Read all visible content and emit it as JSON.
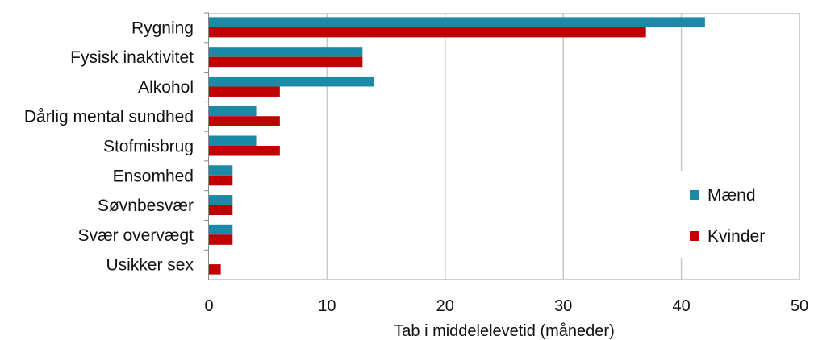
{
  "chart_data": {
    "type": "bar",
    "orientation": "horizontal",
    "categories": [
      "Rygning",
      "Fysisk inaktivitet",
      "Alkohol",
      "Dårlig mental sundhed",
      "Stofmisbrug",
      "Ensomhed",
      "Søvnbesvær",
      "Svær overvægt",
      "Usikker sex"
    ],
    "series": [
      {
        "name": "Mænd",
        "color": "#1a8aa6",
        "values": [
          42,
          13,
          14,
          4,
          4,
          2,
          2,
          2,
          0
        ]
      },
      {
        "name": "Kvinder",
        "color": "#c00000",
        "values": [
          37,
          13,
          6,
          6,
          6,
          2,
          2,
          2,
          1
        ]
      }
    ],
    "xlabel": "Tab i middelelevetid (måneder)",
    "xlim": [
      0,
      50
    ],
    "xticks": [
      "0",
      "10",
      "20",
      "30",
      "40",
      "50"
    ],
    "grid": true,
    "legend_position": "right"
  }
}
